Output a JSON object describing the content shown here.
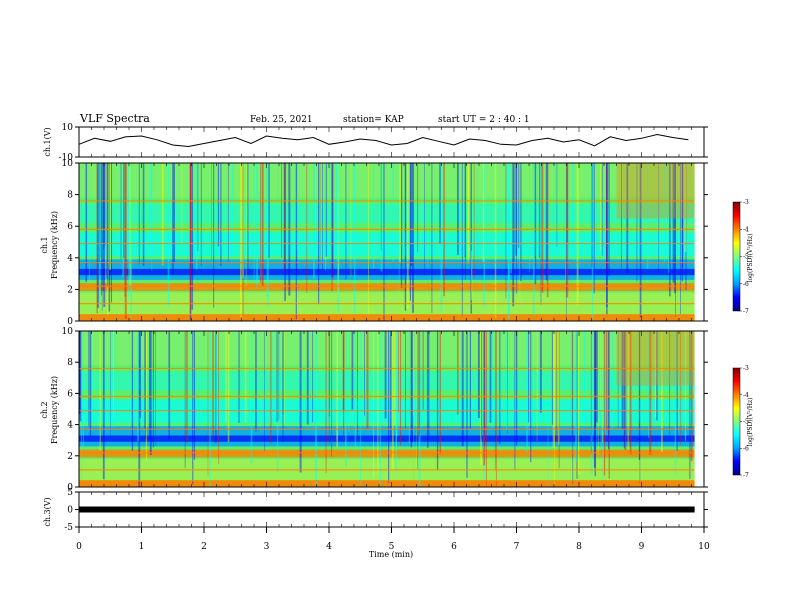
{
  "header": {
    "title": "VLF Spectra",
    "date": "Feb. 25, 2021",
    "station": "station= KAP",
    "start": "start  UT  =   2  : 40 : 1"
  },
  "colors": {
    "trace": "#000000",
    "colormap": [
      "#00007f",
      "#0000ff",
      "#00a0ff",
      "#00ffff",
      "#80ff80",
      "#ffff00",
      "#ff8000",
      "#ff0000",
      "#7f0000"
    ]
  },
  "chart_data": [
    {
      "type": "line",
      "panel": "ch1-waveform",
      "ylabel": "ch.1(V)",
      "ylim": [
        -10,
        10
      ],
      "yticks": [
        "10",
        "-10"
      ],
      "x": [
        0.0,
        0.25,
        0.5,
        0.75,
        1.0,
        1.25,
        1.5,
        1.75,
        2.0,
        2.25,
        2.5,
        2.75,
        3.0,
        3.25,
        3.5,
        3.75,
        4.0,
        4.25,
        4.5,
        4.75,
        5.0,
        5.25,
        5.5,
        5.75,
        6.0,
        6.25,
        6.5,
        6.75,
        7.0,
        7.25,
        7.5,
        7.75,
        8.0,
        8.25,
        8.5,
        8.75,
        9.0,
        9.25,
        9.5,
        9.75
      ],
      "y": [
        -1.5,
        2.5,
        0.5,
        3.5,
        4,
        1.5,
        -2,
        -3,
        -1,
        1,
        3,
        -1,
        4,
        2.5,
        1.5,
        3,
        -1.5,
        0,
        2,
        1,
        -2,
        -1,
        3,
        0.5,
        -2,
        2,
        1,
        -1.5,
        -2,
        1,
        2.5,
        0,
        1.5,
        -2.5,
        3.5,
        1,
        2.5,
        5,
        3,
        1.5
      ]
    },
    {
      "type": "heatmap",
      "panel": "ch1-spectrogram",
      "ylabel": "ch.1\nFrequency (kHz)",
      "ylim": [
        0,
        10
      ],
      "yticks": [
        "0",
        "2",
        "4",
        "6",
        "8",
        "10"
      ],
      "colorbar": {
        "label": "log(PSD)(V²/Hz)",
        "range": [
          -7,
          -3
        ],
        "ticks": [
          "-3",
          "-4",
          "-5",
          "-6",
          "-7"
        ]
      }
    },
    {
      "type": "heatmap",
      "panel": "ch2-spectrogram",
      "ylabel": "ch.2\nFrequency (kHz)",
      "ylim": [
        0,
        10
      ],
      "yticks": [
        "0",
        "2",
        "4",
        "6",
        "8",
        "10"
      ],
      "colorbar": {
        "label": "log(PSD)(V²/Hz)",
        "range": [
          -7,
          -3
        ],
        "ticks": [
          "-3",
          "-4",
          "-5",
          "-6",
          "-7"
        ]
      }
    },
    {
      "type": "line",
      "panel": "ch3-waveform",
      "ylabel": "ch.3(V)",
      "ylim": [
        -5,
        5
      ],
      "yticks": [
        "5",
        "0",
        "-5"
      ],
      "x": [
        0,
        9.85
      ],
      "y": [
        0,
        0
      ]
    }
  ],
  "xaxis": {
    "label": "Time (min)",
    "range": [
      0,
      10
    ],
    "ticks": [
      "0",
      "1",
      "2",
      "3",
      "4",
      "5",
      "6",
      "7",
      "8",
      "9",
      "10"
    ]
  },
  "labels": {
    "ch1": "ch.1(V)",
    "ch1_spec_a": "ch.1",
    "ch1_spec_b": "Frequency (kHz)",
    "ch2_spec_a": "ch.2",
    "ch2_spec_b": "Frequency (kHz)",
    "ch3": "ch.3(V)",
    "cbar1": "log(PSD)(V²/Hz)",
    "cbar2": "log(PSD)(V²/Hz)"
  }
}
